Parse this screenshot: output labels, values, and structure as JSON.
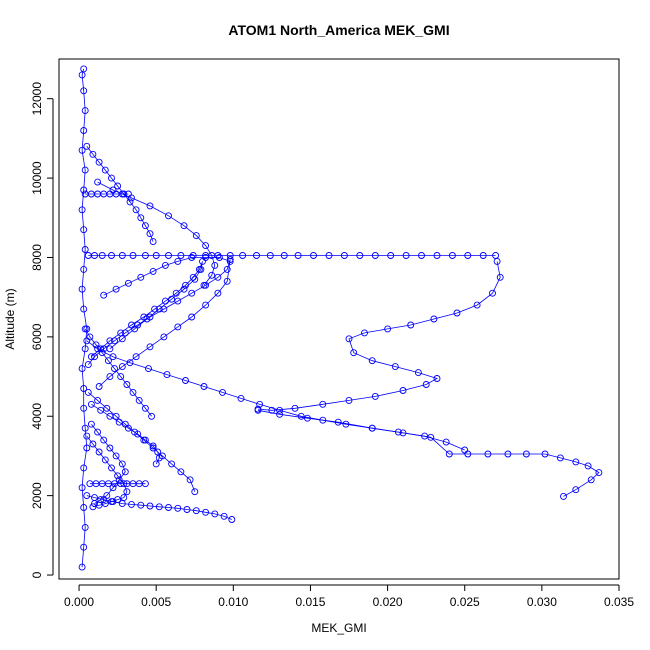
{
  "chart_data": {
    "type": "scatter",
    "title": "ATOM1 North_America MEK_GMI",
    "xlabel": "MEK_GMI",
    "ylabel": "Altitude (m)",
    "xlim": [
      -0.0013,
      0.035
    ],
    "ylim": [
      -100,
      13000
    ],
    "xticks": [
      "0.000",
      "0.005",
      "0.010",
      "0.015",
      "0.020",
      "0.025",
      "0.030",
      "0.035"
    ],
    "xtick_values": [
      0,
      0.005,
      0.01,
      0.015,
      0.02,
      0.025,
      0.03,
      0.035
    ],
    "yticks": [
      "0",
      "2000",
      "4000",
      "6000",
      "8000",
      "10000",
      "12000"
    ],
    "ytick_values": [
      0,
      2000,
      4000,
      6000,
      8000,
      10000,
      12000
    ],
    "grid": false,
    "legend": "none",
    "marker": "open-circle",
    "color": "#0000ff",
    "series": [
      {
        "x": [
          0.0002,
          0.0003,
          0.0004,
          0.0003,
          0.0002,
          0.0003,
          0.0005,
          0.0004,
          0.0003,
          0.0003,
          0.0002,
          0.0004,
          0.0005,
          0.0003,
          0.0002,
          0.0003,
          0.0004,
          0.0003,
          0.0002,
          0.0003,
          0.0004,
          0.0002,
          0.0003,
          0.0004,
          0.0003,
          0.0002,
          0.0003
        ],
        "y": [
          200,
          700,
          1200,
          1700,
          2200,
          2700,
          3200,
          3700,
          4200,
          4700,
          5200,
          5700,
          6200,
          6700,
          7200,
          7700,
          8200,
          8700,
          9200,
          9700,
          10200,
          10700,
          11200,
          11700,
          12200,
          12600,
          12750
        ]
      },
      {
        "x": [
          0.0006,
          0.001,
          0.0015,
          0.0021,
          0.0028,
          0.0035,
          0.0043,
          0.005,
          0.0058,
          0.0066,
          0.0074,
          0.0082,
          0.009,
          0.0098,
          0.0106,
          0.0115,
          0.0124,
          0.0133,
          0.0142,
          0.0152,
          0.0162,
          0.0172,
          0.0182,
          0.0192,
          0.0202,
          0.0212,
          0.0222,
          0.0232,
          0.0242,
          0.0252,
          0.0262,
          0.027
        ],
        "y": [
          8050,
          8050,
          8050,
          8050,
          8050,
          8050,
          8050,
          8050,
          8050,
          8050,
          8050,
          8050,
          8050,
          8050,
          8050,
          8050,
          8050,
          8050,
          8050,
          8050,
          8050,
          8050,
          8050,
          8050,
          8050,
          8050,
          8050,
          8050,
          8050,
          8050,
          8050,
          8050
        ]
      },
      {
        "x": [
          0.0271,
          0.0273,
          0.0268,
          0.0258,
          0.0245,
          0.023,
          0.0215,
          0.02,
          0.0185,
          0.0175,
          0.0178,
          0.019,
          0.0205,
          0.022,
          0.0232,
          0.0225,
          0.021,
          0.0192,
          0.0175,
          0.0158,
          0.014,
          0.0125,
          0.0116
        ],
        "y": [
          7900,
          7500,
          7100,
          6800,
          6600,
          6450,
          6300,
          6200,
          6100,
          5950,
          5600,
          5400,
          5250,
          5100,
          4950,
          4800,
          4650,
          4500,
          4400,
          4300,
          4200,
          4150,
          4180
        ]
      },
      {
        "x": [
          0.0116,
          0.013,
          0.0148,
          0.0168,
          0.019,
          0.021,
          0.0228,
          0.024,
          0.0252,
          0.0265,
          0.0278,
          0.029,
          0.0302,
          0.0312,
          0.0322,
          0.033,
          0.0337,
          0.0332,
          0.0322,
          0.0314
        ],
        "y": [
          4150,
          4050,
          3950,
          3850,
          3700,
          3580,
          3470,
          3050,
          3050,
          3050,
          3050,
          3050,
          3050,
          2950,
          2850,
          2750,
          2580,
          2400,
          2150,
          1980
        ]
      },
      {
        "x": [
          0.0008,
          0.0014,
          0.002,
          0.0027,
          0.0034,
          0.0042,
          0.0049,
          0.0056,
          0.0063,
          0.0069,
          0.0074,
          0.0078,
          0.008,
          0.0079,
          0.0075,
          0.0068,
          0.006,
          0.0052,
          0.0044,
          0.0036,
          0.0028,
          0.002
        ],
        "y": [
          5500,
          5700,
          5900,
          6100,
          6300,
          6500,
          6700,
          6900,
          7100,
          7300,
          7500,
          7700,
          7900,
          7700,
          7450,
          7200,
          6950,
          6700,
          6450,
          6200,
          5950,
          5700
        ]
      },
      {
        "x": [
          0.0012,
          0.0022,
          0.0034,
          0.0046,
          0.0058,
          0.0068,
          0.0076,
          0.0082,
          0.0086,
          0.0088,
          0.0086,
          0.0081
        ],
        "y": [
          9900,
          9700,
          9500,
          9300,
          9050,
          8800,
          8550,
          8300,
          8050,
          7800,
          7550,
          7300
        ]
      },
      {
        "x": [
          0.0006,
          0.001,
          0.0016,
          0.0023,
          0.003,
          0.0038,
          0.0046,
          0.0055,
          0.0064,
          0.0073,
          0.0082,
          0.009,
          0.0096,
          0.0098,
          0.0096,
          0.009,
          0.0082,
          0.0073,
          0.0064,
          0.0055,
          0.0046,
          0.0037,
          0.0028,
          0.002,
          0.0013
        ],
        "y": [
          5300,
          5500,
          5700,
          5900,
          6100,
          6300,
          6500,
          6700,
          6900,
          7100,
          7300,
          7500,
          7700,
          7950,
          7400,
          7100,
          6800,
          6500,
          6250,
          6000,
          5750,
          5500,
          5250,
          5000,
          4750
        ]
      },
      {
        "x": [
          0.0016,
          0.0024,
          0.0032,
          0.004,
          0.0048,
          0.0056,
          0.0064,
          0.0073,
          0.0082,
          0.0091,
          0.0098
        ],
        "y": [
          7050,
          7200,
          7350,
          7500,
          7650,
          7800,
          7900,
          8000,
          8000,
          8000,
          7900
        ]
      },
      {
        "x": [
          0.0005,
          0.0012,
          0.0022,
          0.0033,
          0.0045,
          0.0057,
          0.0069,
          0.0081,
          0.0093,
          0.0105,
          0.0117,
          0.013,
          0.0144,
          0.0158,
          0.0173,
          0.019,
          0.0207,
          0.0224,
          0.0238,
          0.025
        ],
        "y": [
          5900,
          5700,
          5500,
          5350,
          5200,
          5050,
          4900,
          4750,
          4600,
          4450,
          4300,
          4150,
          4000,
          3900,
          3800,
          3700,
          3600,
          3500,
          3350,
          3150
        ]
      },
      {
        "x": [
          0.0005,
          0.001,
          0.0016,
          0.0022,
          0.0028,
          0.0034,
          0.004,
          0.0046,
          0.0052,
          0.0058,
          0.0064,
          0.007,
          0.0076,
          0.0082,
          0.0088,
          0.0094,
          0.0099
        ],
        "y": [
          2000,
          1950,
          1900,
          1850,
          1800,
          1780,
          1760,
          1740,
          1720,
          1700,
          1680,
          1650,
          1620,
          1580,
          1540,
          1480,
          1400
        ]
      },
      {
        "x": [
          0.0008,
          0.0014,
          0.002,
          0.0026,
          0.0032,
          0.0038,
          0.0043,
          0.0048,
          0.0051,
          0.0052,
          0.005
        ],
        "y": [
          4300,
          4150,
          4000,
          3850,
          3700,
          3550,
          3400,
          3250,
          3100,
          2950,
          2800
        ]
      },
      {
        "x": [
          0.0006,
          0.0012,
          0.0018,
          0.0024,
          0.003,
          0.0036,
          0.0042,
          0.0048,
          0.0054,
          0.006,
          0.0066,
          0.0072,
          0.0075
        ],
        "y": [
          4600,
          4400,
          4200,
          4000,
          3800,
          3600,
          3400,
          3200,
          3000,
          2800,
          2600,
          2400,
          2100
        ]
      },
      {
        "x": [
          0.0008,
          0.0012,
          0.0016,
          0.002,
          0.0024,
          0.0028,
          0.003,
          0.0026,
          0.0022,
          0.0018,
          0.0014,
          0.001
        ],
        "y": [
          3800,
          3600,
          3400,
          3200,
          3000,
          2800,
          2600,
          2400,
          2200,
          2000,
          1900,
          1800
        ]
      },
      {
        "x": [
          0.0005,
          0.0009,
          0.0013,
          0.0017,
          0.0021,
          0.0025,
          0.0029,
          0.0033,
          0.0037,
          0.004,
          0.0043,
          0.0046,
          0.0048
        ],
        "y": [
          10800,
          10600,
          10400,
          10200,
          10000,
          9800,
          9600,
          9400,
          9200,
          9000,
          8800,
          8600,
          8400
        ]
      },
      {
        "x": [
          0.0004,
          0.0007,
          0.0011,
          0.0015,
          0.0019,
          0.0023,
          0.0027,
          0.0031,
          0.0035,
          0.0039,
          0.0043,
          0.0047
        ],
        "y": [
          6200,
          6000,
          5800,
          5600,
          5400,
          5200,
          5000,
          4800,
          4600,
          4400,
          4200,
          4000
        ]
      },
      {
        "x": [
          0.0005,
          0.0009,
          0.0013,
          0.0017,
          0.0021,
          0.0025,
          0.0029,
          0.0031,
          0.0029,
          0.0025,
          0.0021,
          0.0017,
          0.0013,
          0.0009
        ],
        "y": [
          3500,
          3300,
          3100,
          2900,
          2700,
          2500,
          2300,
          2100,
          1950,
          1900,
          1850,
          1800,
          1760,
          1720
        ]
      },
      {
        "x": [
          0.0004,
          0.0008,
          0.0012,
          0.0016,
          0.002,
          0.0024,
          0.0028,
          0.0032
        ],
        "y": [
          9600,
          9600,
          9600,
          9600,
          9600,
          9600,
          9600,
          9600
        ]
      },
      {
        "x": [
          0.0007,
          0.0011,
          0.0015,
          0.0019,
          0.0023,
          0.0027,
          0.0031,
          0.0035,
          0.0039,
          0.0043
        ],
        "y": [
          2300,
          2300,
          2300,
          2300,
          2300,
          2300,
          2300,
          2300,
          2300,
          2300
        ]
      }
    ]
  }
}
